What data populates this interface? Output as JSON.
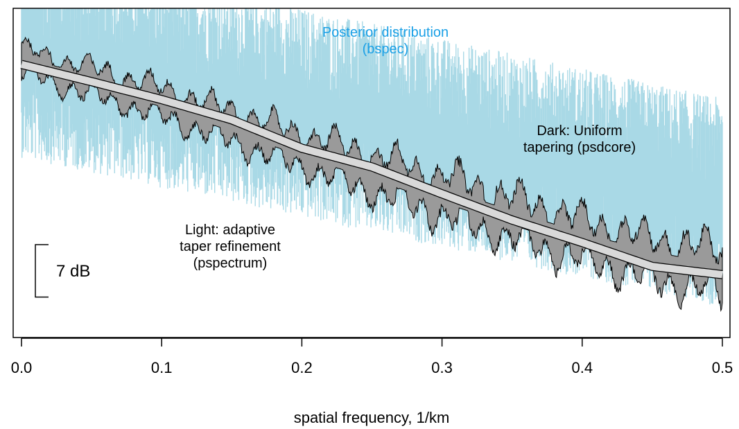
{
  "chart_data": {
    "type": "area",
    "xlabel": "spatial frequency, 1/km",
    "xlim": [
      0.0,
      0.5
    ],
    "x_ticks": [
      0.0,
      0.1,
      0.2,
      0.3,
      0.4,
      0.5
    ],
    "x_tick_labels": [
      "0.0",
      "0.1",
      "0.2",
      "0.3",
      "0.4",
      "0.5"
    ],
    "y_units": "dB",
    "ylim": [
      -44,
      0
    ],
    "grid": false,
    "scale_bar": {
      "label": "7 dB",
      "value_db": 7
    },
    "series": [
      {
        "name": "Posterior distribution (bspec)",
        "kind": "noisy band",
        "x": [
          0.0,
          0.05,
          0.1,
          0.15,
          0.2,
          0.25,
          0.3,
          0.35,
          0.4,
          0.45,
          0.5
        ],
        "lower": [
          -20,
          -22,
          -24,
          -26,
          -28,
          -30,
          -32,
          -34,
          -36,
          -38,
          -40
        ],
        "upper": [
          8,
          6,
          4,
          2,
          0,
          -2,
          -4,
          -6,
          -8,
          -10,
          -12
        ]
      },
      {
        "name": "Dark: Uniform tapering (psdcore)",
        "kind": "oscillating band",
        "x": [
          0.0,
          0.05,
          0.1,
          0.15,
          0.2,
          0.25,
          0.3,
          0.35,
          0.4,
          0.45,
          0.5
        ],
        "lower": [
          -10,
          -13,
          -16,
          -19.5,
          -23,
          -26.5,
          -30,
          -33,
          -36,
          -38.5,
          -40.5
        ],
        "upper": [
          -4,
          -6.5,
          -9,
          -12,
          -15,
          -17.5,
          -20,
          -23,
          -26,
          -28.5,
          -30
        ]
      },
      {
        "name": "Light: adaptive taper refinement (pspectrum)",
        "kind": "smooth curve",
        "x": [
          0.0,
          0.05,
          0.1,
          0.15,
          0.2,
          0.25,
          0.3,
          0.35,
          0.4,
          0.45,
          0.5
        ],
        "y": [
          -7.5,
          -9.8,
          -12.2,
          -14.9,
          -18.7,
          -21.2,
          -24.8,
          -28.3,
          -31.3,
          -34.5,
          -35.6
        ]
      }
    ],
    "annotations": [
      {
        "text_lines": [
          "Posterior distribution",
          "(bspec)"
        ],
        "color": "#1aa0e6"
      },
      {
        "text_lines": [
          "Dark: Uniform",
          "tapering (psdcore)"
        ],
        "color": "#000000"
      },
      {
        "text_lines": [
          "Light: adaptive",
          "taper refinement",
          "(pspectrum)"
        ],
        "color": "#000000"
      }
    ],
    "colors": {
      "posterior": "#a9d9e6",
      "dark_band": "#9a9a9a",
      "light_curve": "#d9d9d9",
      "outline": "#000000"
    }
  }
}
